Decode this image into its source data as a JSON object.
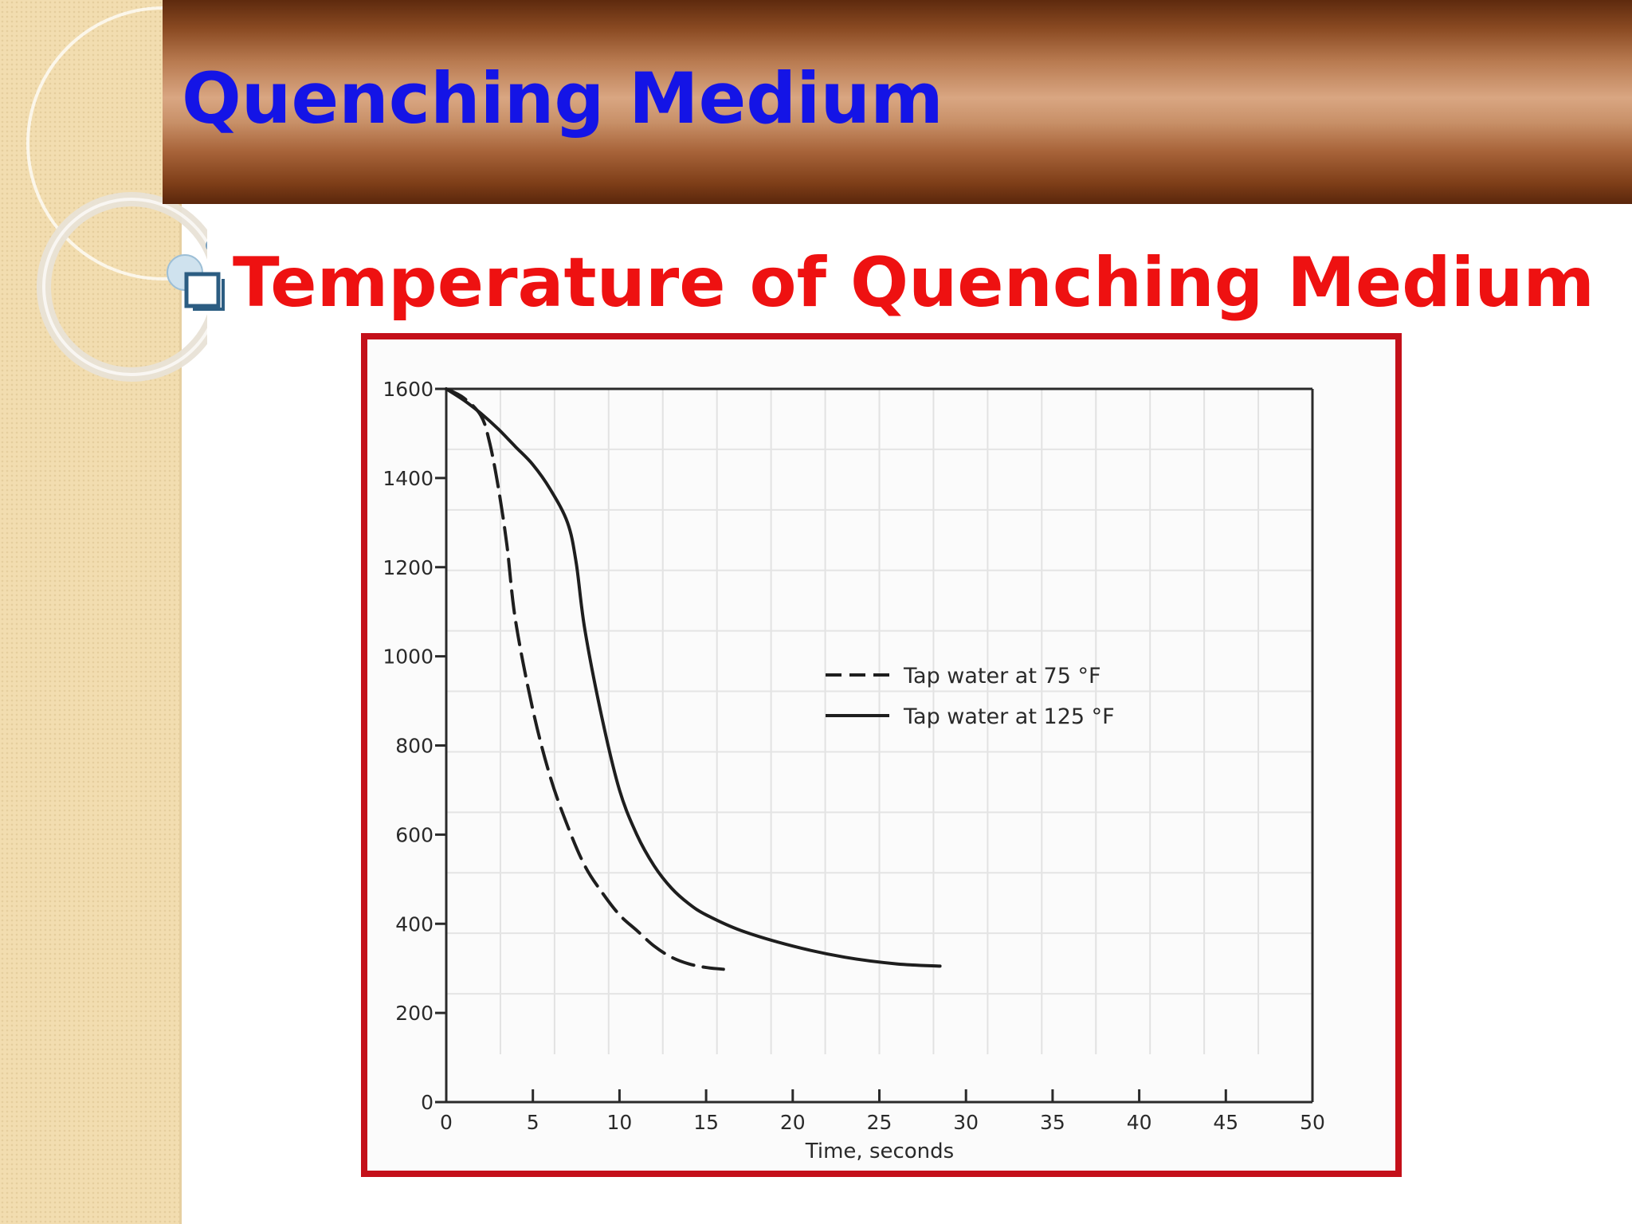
{
  "slide": {
    "title": "Quenching Medium",
    "bullet_icon": "checkbox-square-icon",
    "subtitle": "Temperature of Quenching Medium",
    "colors": {
      "title": "#1414e6",
      "subtitle": "#ee1111",
      "frame": "#c4101a",
      "banner": "#a8643a"
    }
  },
  "chart_data": {
    "type": "line",
    "xlabel": "Time, seconds",
    "ylabel": "",
    "xlim": [
      0,
      50
    ],
    "ylim": [
      0,
      1600
    ],
    "x_ticks": [
      0,
      5,
      10,
      15,
      20,
      25,
      30,
      35,
      40,
      45,
      50
    ],
    "y_ticks": [
      0,
      200,
      400,
      600,
      800,
      1000,
      1200,
      1400,
      1600
    ],
    "legend_position": "center-right",
    "series": [
      {
        "name": "Tap water at 75 °F",
        "style": "dashed",
        "x": [
          0,
          1,
          2,
          2.5,
          3,
          3.5,
          4,
          5,
          6,
          7,
          8,
          9,
          10,
          11,
          12,
          13,
          14,
          15,
          16
        ],
        "y": [
          1600,
          1580,
          1540,
          1480,
          1380,
          1250,
          1080,
          880,
          730,
          620,
          530,
          470,
          420,
          385,
          350,
          325,
          310,
          302,
          298
        ]
      },
      {
        "name": "Tap water at 125 °F",
        "style": "solid",
        "x": [
          0,
          1,
          2,
          3,
          4,
          5,
          6,
          7,
          7.5,
          8,
          9,
          10,
          11,
          12,
          13,
          14,
          15,
          17,
          20,
          23,
          26,
          28.5
        ],
        "y": [
          1600,
          1575,
          1545,
          1510,
          1470,
          1430,
          1375,
          1300,
          1210,
          1060,
          860,
          700,
          600,
          530,
          480,
          445,
          420,
          385,
          350,
          325,
          310,
          305
        ]
      }
    ]
  }
}
